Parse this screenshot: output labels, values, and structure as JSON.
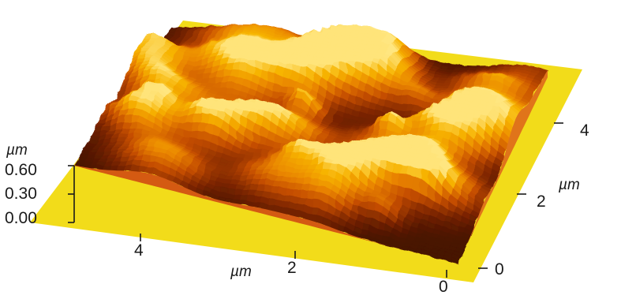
{
  "chart_data": {
    "type": "surface-3d",
    "x_axis": {
      "unit": "µm",
      "ticks": [
        "0",
        "2",
        "4"
      ],
      "range": [
        0,
        5
      ]
    },
    "y_axis": {
      "unit": "µm",
      "ticks": [
        "0",
        "2",
        "4"
      ],
      "range": [
        0,
        5
      ]
    },
    "z_axis": {
      "unit": "µm",
      "ticks": [
        "0.00",
        "0.30",
        "0.60"
      ],
      "range": [
        0,
        0.6
      ]
    },
    "colormap": [
      "#3a0f02",
      "#7a2400",
      "#c44d00",
      "#e98300",
      "#f7b400",
      "#ffe680"
    ],
    "base_color": "#f2dc1a",
    "grid": false,
    "legend": "none"
  }
}
